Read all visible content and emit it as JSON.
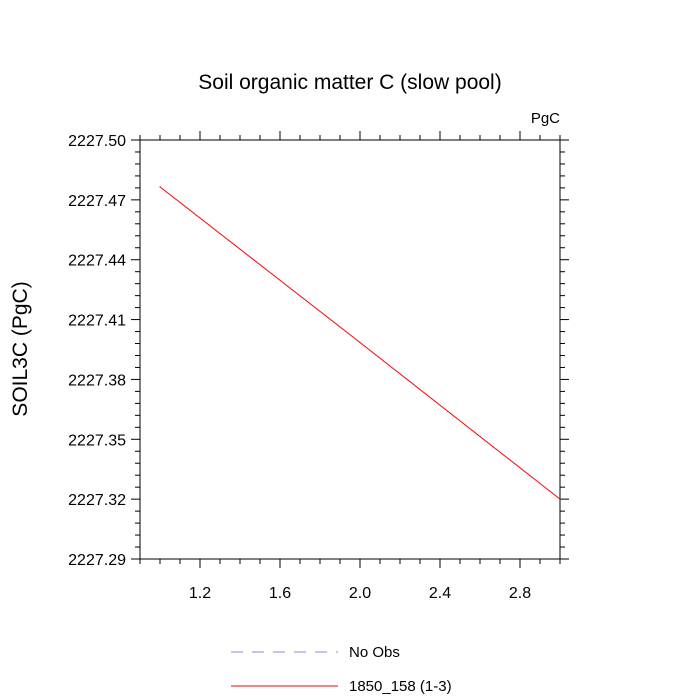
{
  "chart_data": {
    "type": "line",
    "title": "Soil organic matter C (slow pool)",
    "units": "PgC",
    "ylabel": "SOIL3C  (PgC)",
    "xlabel": "",
    "xlim": [
      0.9,
      3.0
    ],
    "ylim": [
      2227.29,
      2227.5
    ],
    "xticks": [
      1.2,
      1.6,
      2.0,
      2.4,
      2.8
    ],
    "xtick_labels": [
      "1.2",
      "1.6",
      "2.0",
      "2.4",
      "2.8"
    ],
    "yticks": [
      2227.29,
      2227.32,
      2227.35,
      2227.38,
      2227.41,
      2227.44,
      2227.47,
      2227.5
    ],
    "ytick_labels": [
      "2227.29",
      "2227.32",
      "2227.35",
      "2227.38",
      "2227.41",
      "2227.44",
      "2227.47",
      "2227.50"
    ],
    "grid": false,
    "legend_position": "bottom",
    "series": [
      {
        "name": "No Obs",
        "x": [],
        "y": [],
        "color": "#8a8ae6",
        "style": "dashed"
      },
      {
        "name": "1850_158 (1-3)",
        "x": [
          1,
          2,
          3
        ],
        "y": [
          2227.4765,
          2227.3985,
          2227.32
        ],
        "color": "#ff0000",
        "style": "solid"
      }
    ]
  }
}
